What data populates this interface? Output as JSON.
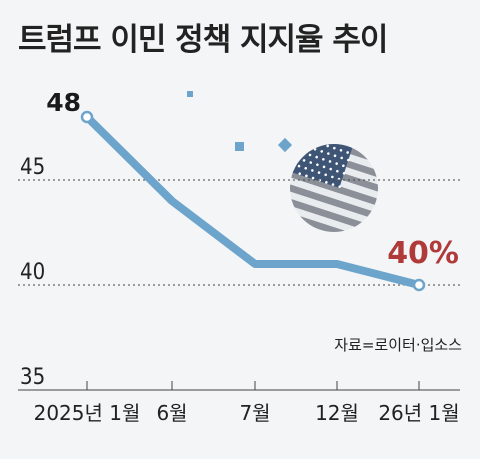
{
  "title": "트럼프 이민 정책 지지율 추이",
  "source": "자료=로이터·입소스",
  "colors": {
    "line": "#6da4cc",
    "end_label": "#b03a3a",
    "grid": "#444444",
    "background": "#f4f5f6",
    "flag_blue": "#3e5576",
    "flag_stripe": "#8a8f98"
  },
  "decorations": [
    "us-flag-globe-icon",
    "square-dot-icon",
    "diamond-icon"
  ],
  "chart_data": {
    "type": "line",
    "title": "트럼프 이민 정책 지지율 추이",
    "xlabel": "",
    "ylabel": "",
    "ylim": [
      35,
      48
    ],
    "yticks": [
      35,
      40,
      45
    ],
    "grid": "dotted horizontal",
    "categories": [
      "2025년 1월",
      "6월",
      "7월",
      "12월",
      "26년 1월"
    ],
    "series": [
      {
        "values": [
          48,
          44,
          41,
          41,
          40
        ]
      }
    ],
    "data_labels": {
      "start": "48",
      "end": "40%"
    }
  }
}
